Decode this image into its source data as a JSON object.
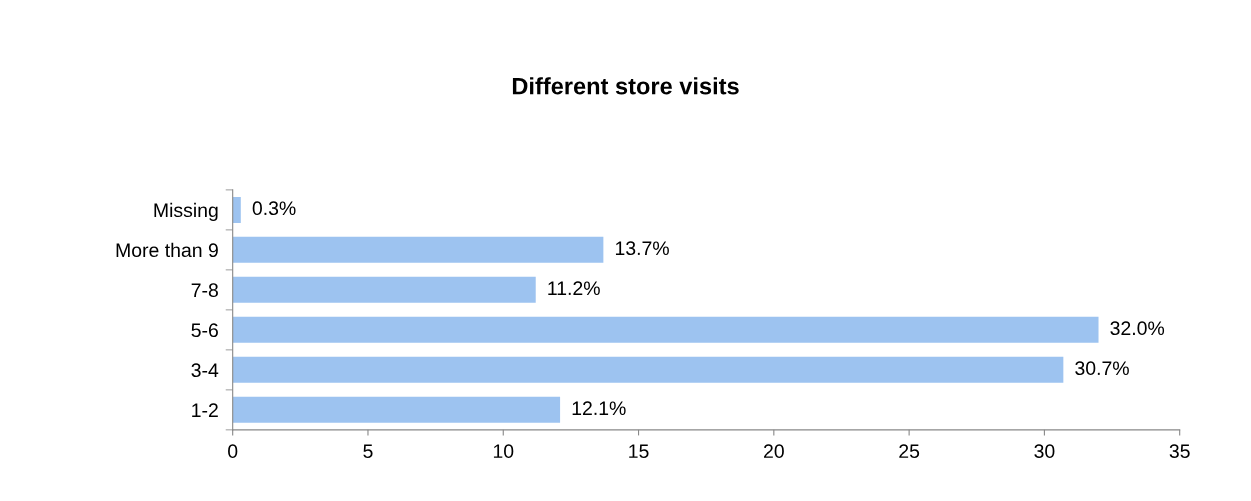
{
  "chart_data": {
    "type": "bar",
    "orientation": "horizontal",
    "title": "Different store visits",
    "categories": [
      "Missing",
      "More than 9",
      "7-8",
      "5-6",
      "3-4",
      "1-2"
    ],
    "values": [
      0.3,
      13.7,
      11.2,
      32.0,
      30.7,
      12.1
    ],
    "value_labels": [
      "0.3%",
      "13.7%",
      "11.2%",
      "32.0%",
      "30.7%",
      "12.1%"
    ],
    "color": "#9dc3f0",
    "xlim": [
      0,
      35
    ],
    "xticks": [
      0,
      5,
      10,
      15,
      20,
      25,
      30,
      35
    ],
    "grid": false,
    "legend": false
  }
}
